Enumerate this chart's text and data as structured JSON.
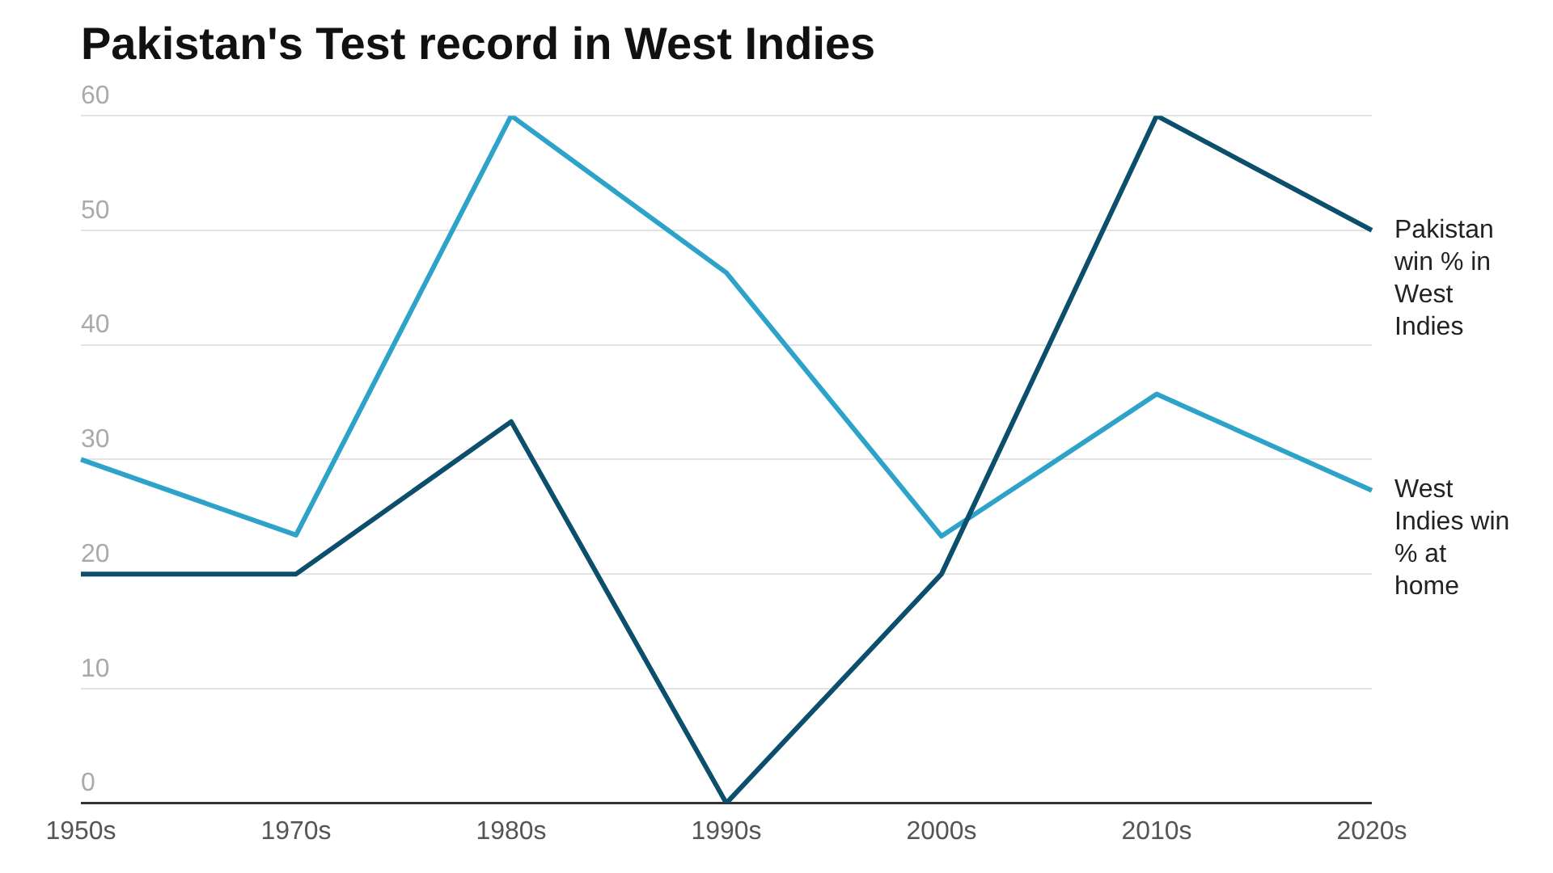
{
  "chart_data": {
    "type": "line",
    "title": "Pakistan's Test record in West Indies",
    "categories": [
      "1950s",
      "1970s",
      "1980s",
      "1990s",
      "2000s",
      "2010s",
      "2020s"
    ],
    "series": [
      {
        "name": "Pakistan win % in West Indies",
        "color": "#0b4f6c",
        "values": [
          20,
          20,
          33.3,
          0,
          20,
          60,
          50
        ]
      },
      {
        "name": "West Indies win % at home",
        "color": "#2ea3c9",
        "values": [
          30,
          23.4,
          60,
          46.3,
          23.3,
          35.7,
          27.3
        ]
      }
    ],
    "ylim": [
      0,
      60
    ],
    "yticks": [
      0,
      10,
      20,
      30,
      40,
      50,
      60
    ],
    "grid": "y",
    "legend": false,
    "marker": "none",
    "line_style": "solid"
  }
}
